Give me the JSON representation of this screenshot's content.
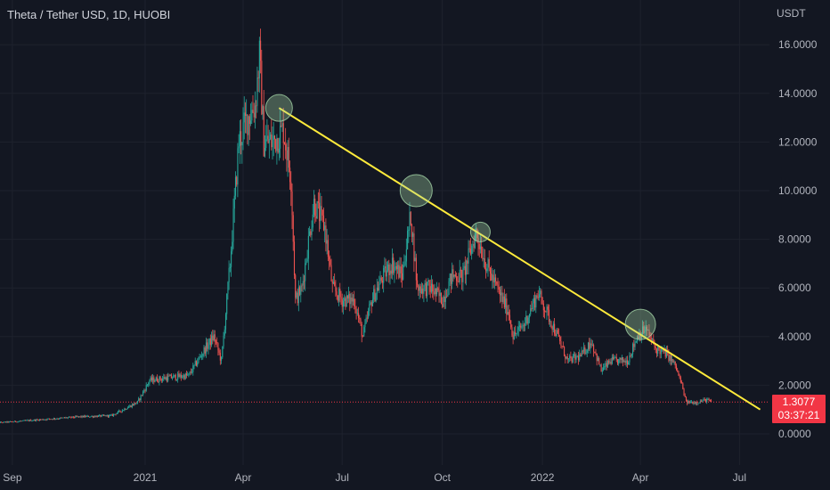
{
  "header": {
    "title": "Theta / Tether USD, 1D, HUOBI"
  },
  "price_axis": {
    "unit": "USDT"
  },
  "last_price": {
    "value": "1.3077",
    "countdown": "03:37:21",
    "color": "#f23645"
  },
  "colors": {
    "up": "#26a69a",
    "down": "#ef5350",
    "trendline": "#ffeb3b",
    "highlight_fill": "#a5d6a7",
    "background": "#131722"
  },
  "chart_data": {
    "type": "candlestick",
    "title": "Theta / Tether USD, 1D, HUOBI",
    "yaxis_label": "USDT",
    "ylim": [
      -0.4,
      17.2
    ],
    "y_ticks": [
      0,
      2,
      4,
      6,
      8,
      10,
      12,
      14,
      16
    ],
    "y_tick_labels": [
      "0.0000",
      "2.0000",
      "4.0000",
      "6.0000",
      "8.0000",
      "10.0000",
      "12.0000",
      "14.0000",
      "16.0000"
    ],
    "x_ticks": [
      "Sep",
      "2021",
      "Apr",
      "Jul",
      "Oct",
      "2022",
      "Apr",
      "Jul"
    ],
    "x_tick_dates": [
      "2020-09-01",
      "2021-01-01",
      "2021-04-01",
      "2021-07-01",
      "2021-10-01",
      "2022-01-01",
      "2022-04-01",
      "2022-07-01"
    ],
    "price_path": [
      [
        "2020-08-15",
        0.45
      ],
      [
        "2020-09-01",
        0.5
      ],
      [
        "2020-10-01",
        0.6
      ],
      [
        "2020-11-01",
        0.7
      ],
      [
        "2020-12-01",
        0.75
      ],
      [
        "2020-12-25",
        1.3
      ],
      [
        "2021-01-05",
        2.2
      ],
      [
        "2021-01-20",
        2.3
      ],
      [
        "2021-02-10",
        2.4
      ],
      [
        "2021-02-25",
        3.5
      ],
      [
        "2021-03-05",
        4.0
      ],
      [
        "2021-03-12",
        3.0
      ],
      [
        "2021-03-20",
        7.0
      ],
      [
        "2021-03-28",
        12.0
      ],
      [
        "2021-04-05",
        13.0
      ],
      [
        "2021-04-12",
        13.5
      ],
      [
        "2021-04-16",
        15.5
      ],
      [
        "2021-04-20",
        12.0
      ],
      [
        "2021-04-28",
        12.0
      ],
      [
        "2021-05-08",
        12.5
      ],
      [
        "2021-05-15",
        10.5
      ],
      [
        "2021-05-19",
        5.5
      ],
      [
        "2021-05-25",
        6.0
      ],
      [
        "2021-06-05",
        9.5
      ],
      [
        "2021-06-15",
        8.5
      ],
      [
        "2021-06-22",
        6.0
      ],
      [
        "2021-07-01",
        5.5
      ],
      [
        "2021-07-12",
        5.5
      ],
      [
        "2021-07-20",
        4.0
      ],
      [
        "2021-07-28",
        5.5
      ],
      [
        "2021-08-08",
        6.5
      ],
      [
        "2021-08-16",
        7.0
      ],
      [
        "2021-08-25",
        6.5
      ],
      [
        "2021-09-02",
        9.0
      ],
      [
        "2021-09-08",
        6.0
      ],
      [
        "2021-09-20",
        6.0
      ],
      [
        "2021-10-01",
        5.5
      ],
      [
        "2021-10-10",
        6.5
      ],
      [
        "2021-10-20",
        6.5
      ],
      [
        "2021-11-01",
        8.3
      ],
      [
        "2021-11-10",
        7.0
      ],
      [
        "2021-11-20",
        6.0
      ],
      [
        "2021-12-01",
        5.0
      ],
      [
        "2021-12-05",
        4.0
      ],
      [
        "2021-12-15",
        4.5
      ],
      [
        "2021-12-28",
        5.8
      ],
      [
        "2022-01-05",
        5.0
      ],
      [
        "2022-01-15",
        4.0
      ],
      [
        "2022-01-24",
        3.0
      ],
      [
        "2022-02-05",
        3.2
      ],
      [
        "2022-02-15",
        3.8
      ],
      [
        "2022-02-24",
        2.6
      ],
      [
        "2022-03-05",
        3.0
      ],
      [
        "2022-03-20",
        3.0
      ],
      [
        "2022-03-30",
        4.1
      ],
      [
        "2022-04-06",
        4.3
      ],
      [
        "2022-04-15",
        3.5
      ],
      [
        "2022-04-25",
        3.3
      ],
      [
        "2022-05-03",
        2.8
      ],
      [
        "2022-05-09",
        2.0
      ],
      [
        "2022-05-13",
        1.3
      ],
      [
        "2022-05-22",
        1.3
      ],
      [
        "2022-06-01",
        1.4
      ],
      [
        "2022-06-05",
        1.31
      ]
    ],
    "trendline": {
      "start": [
        "2021-05-04",
        13.4
      ],
      "end": [
        "2022-07-20",
        1.0
      ]
    },
    "highlight_circles": [
      [
        "2021-05-04",
        13.4
      ],
      [
        "2021-09-07",
        10.0
      ],
      [
        "2021-11-05",
        8.3
      ],
      [
        "2022-04-01",
        4.5
      ]
    ],
    "last_price_line": 1.3077
  }
}
